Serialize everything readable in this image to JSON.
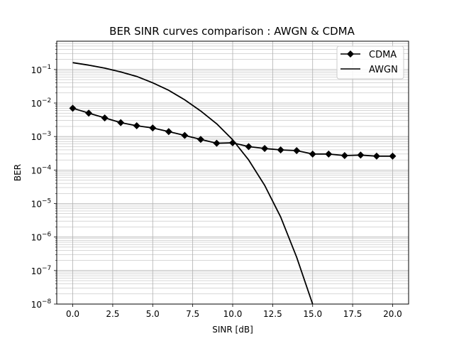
{
  "chart_data": {
    "type": "line",
    "title": "BER SINR curves comparison : AWGN & CDMA",
    "xlabel": "SINR [dB]",
    "ylabel": "BER",
    "xlim": [
      -1,
      21
    ],
    "ylim": [
      1e-08,
      0.7
    ],
    "yscale": "log",
    "grid": "major-and-minor",
    "legend_position": "top-right",
    "x_ticks": [
      0,
      2.5,
      5,
      7.5,
      10,
      12.5,
      15,
      17.5,
      20
    ],
    "x_tick_labels": [
      "0.0",
      "2.5",
      "5.0",
      "7.5",
      "10.0",
      "12.5",
      "15.0",
      "17.5",
      "20.0"
    ],
    "y_tick_exponents": [
      -8,
      -7,
      -6,
      -5,
      -4,
      -3,
      -2,
      -1
    ],
    "series": [
      {
        "name": "CDMA",
        "color": "#000000",
        "marker": "diamond",
        "x": [
          0,
          1,
          2,
          3,
          4,
          5,
          6,
          7,
          8,
          9,
          10,
          11,
          12,
          13,
          14,
          15,
          16,
          17,
          18,
          19,
          20
        ],
        "y": [
          0.007,
          0.005,
          0.0036,
          0.0026,
          0.0021,
          0.0018,
          0.0014,
          0.00108,
          0.00082,
          0.00063,
          0.00065,
          0.0005,
          0.00044,
          0.0004,
          0.00038,
          0.0003,
          0.0003,
          0.00027,
          0.00028,
          0.00026,
          0.00026
        ]
      },
      {
        "name": "AWGN",
        "color": "#000000",
        "marker": "none",
        "x": [
          0,
          1,
          2,
          3,
          4,
          5,
          6,
          7,
          8,
          9,
          10,
          11,
          12,
          13,
          14,
          15
        ],
        "y": [
          0.16,
          0.135,
          0.11,
          0.085,
          0.062,
          0.04,
          0.024,
          0.0125,
          0.0058,
          0.0024,
          0.0008,
          0.0002,
          3.5e-05,
          4e-06,
          2.5e-07,
          1e-08
        ]
      }
    ]
  }
}
